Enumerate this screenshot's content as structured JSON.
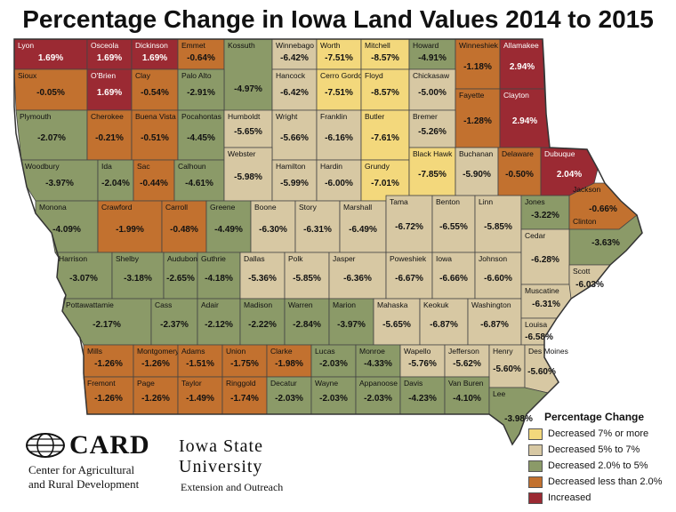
{
  "title": "Percentage Change in Iowa Land Values 2014 to 2015",
  "legend": {
    "title": "Percentage Change",
    "items": [
      {
        "key": "y",
        "label": "Decreased 7% or more",
        "color": "#f3d87c"
      },
      {
        "key": "t",
        "label": "Decreased 5% to 7%",
        "color": "#d7c8a3"
      },
      {
        "key": "g",
        "label": "Decreased 2.0% to 5%",
        "color": "#8b9a68"
      },
      {
        "key": "o",
        "label": "Decreased less than 2.0%",
        "color": "#c2712f"
      },
      {
        "key": "r",
        "label": "Increased",
        "color": "#9b2a33"
      }
    ]
  },
  "counties": [
    {
      "name": "Lyon",
      "value": "1.69%",
      "cat": "r"
    },
    {
      "name": "Osceola",
      "value": "1.69%",
      "cat": "r"
    },
    {
      "name": "Dickinson",
      "value": "1.69%",
      "cat": "r"
    },
    {
      "name": "Emmet",
      "value": "-0.64%",
      "cat": "o"
    },
    {
      "name": "Kossuth",
      "value": "-4.97%",
      "cat": "g"
    },
    {
      "name": "Winnebago",
      "value": "-6.42%",
      "cat": "t"
    },
    {
      "name": "Worth",
      "value": "-7.51%",
      "cat": "y"
    },
    {
      "name": "Mitchell",
      "value": "-8.57%",
      "cat": "y"
    },
    {
      "name": "Howard",
      "value": "-4.91%",
      "cat": "g"
    },
    {
      "name": "Winneshiek",
      "value": "-1.18%",
      "cat": "o"
    },
    {
      "name": "Allamakee",
      "value": "2.94%",
      "cat": "r"
    },
    {
      "name": "Sioux",
      "value": "-0.05%",
      "cat": "o"
    },
    {
      "name": "O'Brien",
      "value": "1.69%",
      "cat": "r"
    },
    {
      "name": "Clay",
      "value": "-0.54%",
      "cat": "o"
    },
    {
      "name": "Palo Alto",
      "value": "-2.91%",
      "cat": "g"
    },
    {
      "name": "Hancock",
      "value": "-6.42%",
      "cat": "t"
    },
    {
      "name": "Cerro Gordo",
      "value": "-7.51%",
      "cat": "y"
    },
    {
      "name": "Floyd",
      "value": "-8.57%",
      "cat": "y"
    },
    {
      "name": "Chickasaw",
      "value": "-5.00%",
      "cat": "t"
    },
    {
      "name": "Fayette",
      "value": "-1.28%",
      "cat": "o"
    },
    {
      "name": "Clayton",
      "value": "2.94%",
      "cat": "r"
    },
    {
      "name": "Plymouth",
      "value": "-2.07%",
      "cat": "g"
    },
    {
      "name": "Cherokee",
      "value": "-0.21%",
      "cat": "o"
    },
    {
      "name": "Buena Vista",
      "value": "-0.51%",
      "cat": "o"
    },
    {
      "name": "Pocahontas",
      "value": "-4.45%",
      "cat": "g"
    },
    {
      "name": "Humboldt",
      "value": "-5.65%",
      "cat": "t"
    },
    {
      "name": "Wright",
      "value": "-5.66%",
      "cat": "t"
    },
    {
      "name": "Franklin",
      "value": "-6.16%",
      "cat": "t"
    },
    {
      "name": "Butler",
      "value": "-7.61%",
      "cat": "y"
    },
    {
      "name": "Bremer",
      "value": "-5.26%",
      "cat": "t"
    },
    {
      "name": "Woodbury",
      "value": "-3.97%",
      "cat": "g"
    },
    {
      "name": "Ida",
      "value": "-2.04%",
      "cat": "g"
    },
    {
      "name": "Sac",
      "value": "-0.44%",
      "cat": "o"
    },
    {
      "name": "Calhoun",
      "value": "-4.61%",
      "cat": "g"
    },
    {
      "name": "Webster",
      "value": "-5.98%",
      "cat": "t"
    },
    {
      "name": "Hamilton",
      "value": "-5.99%",
      "cat": "t"
    },
    {
      "name": "Hardin",
      "value": "-6.00%",
      "cat": "t"
    },
    {
      "name": "Grundy",
      "value": "-7.01%",
      "cat": "y"
    },
    {
      "name": "Black Hawk",
      "value": "-7.85%",
      "cat": "y"
    },
    {
      "name": "Buchanan",
      "value": "-5.90%",
      "cat": "t"
    },
    {
      "name": "Delaware",
      "value": "-0.50%",
      "cat": "o"
    },
    {
      "name": "Dubuque",
      "value": "2.04%",
      "cat": "r"
    },
    {
      "name": "Monona",
      "value": "-4.09%",
      "cat": "g"
    },
    {
      "name": "Crawford",
      "value": "-1.99%",
      "cat": "o"
    },
    {
      "name": "Carroll",
      "value": "-0.48%",
      "cat": "o"
    },
    {
      "name": "Greene",
      "value": "-4.49%",
      "cat": "g"
    },
    {
      "name": "Boone",
      "value": "-6.30%",
      "cat": "t"
    },
    {
      "name": "Story",
      "value": "-6.31%",
      "cat": "t"
    },
    {
      "name": "Marshall",
      "value": "-6.49%",
      "cat": "t"
    },
    {
      "name": "Tama",
      "value": "-6.72%",
      "cat": "t"
    },
    {
      "name": "Benton",
      "value": "-6.55%",
      "cat": "t"
    },
    {
      "name": "Linn",
      "value": "-5.85%",
      "cat": "t"
    },
    {
      "name": "Jones",
      "value": "-3.22%",
      "cat": "g"
    },
    {
      "name": "Jackson",
      "value": "-0.66%",
      "cat": "o"
    },
    {
      "name": "Clinton",
      "value": "-3.63%",
      "cat": "g"
    },
    {
      "name": "Harrison",
      "value": "-3.07%",
      "cat": "g"
    },
    {
      "name": "Shelby",
      "value": "-3.18%",
      "cat": "g"
    },
    {
      "name": "Audubon",
      "value": "-2.65%",
      "cat": "g"
    },
    {
      "name": "Guthrie",
      "value": "-4.18%",
      "cat": "g"
    },
    {
      "name": "Dallas",
      "value": "-5.36%",
      "cat": "t"
    },
    {
      "name": "Polk",
      "value": "-5.85%",
      "cat": "t"
    },
    {
      "name": "Jasper",
      "value": "-6.36%",
      "cat": "t"
    },
    {
      "name": "Poweshiek",
      "value": "-6.67%",
      "cat": "t"
    },
    {
      "name": "Iowa",
      "value": "-6.66%",
      "cat": "t"
    },
    {
      "name": "Johnson",
      "value": "-6.60%",
      "cat": "t"
    },
    {
      "name": "Cedar",
      "value": "-6.28%",
      "cat": "t"
    },
    {
      "name": "Scott",
      "value": "-6.03%",
      "cat": "t"
    },
    {
      "name": "Pottawattamie",
      "value": "-2.17%",
      "cat": "g"
    },
    {
      "name": "Cass",
      "value": "-2.37%",
      "cat": "g"
    },
    {
      "name": "Adair",
      "value": "-2.12%",
      "cat": "g"
    },
    {
      "name": "Madison",
      "value": "-2.22%",
      "cat": "g"
    },
    {
      "name": "Warren",
      "value": "-2.84%",
      "cat": "g"
    },
    {
      "name": "Marion",
      "value": "-3.97%",
      "cat": "g"
    },
    {
      "name": "Mahaska",
      "value": "-5.65%",
      "cat": "t"
    },
    {
      "name": "Keokuk",
      "value": "-6.87%",
      "cat": "t"
    },
    {
      "name": "Washington",
      "value": "-6.87%",
      "cat": "t"
    },
    {
      "name": "Muscatine",
      "value": "-6.31%",
      "cat": "t"
    },
    {
      "name": "Louisa",
      "value": "-6.58%",
      "cat": "t"
    },
    {
      "name": "Mills",
      "value": "-1.26%",
      "cat": "o"
    },
    {
      "name": "Montgomery",
      "value": "-1.26%",
      "cat": "o"
    },
    {
      "name": "Adams",
      "value": "-1.51%",
      "cat": "o"
    },
    {
      "name": "Union",
      "value": "-1.75%",
      "cat": "o"
    },
    {
      "name": "Clarke",
      "value": "-1.98%",
      "cat": "o"
    },
    {
      "name": "Lucas",
      "value": "-2.03%",
      "cat": "g"
    },
    {
      "name": "Monroe",
      "value": "-4.33%",
      "cat": "g"
    },
    {
      "name": "Wapello",
      "value": "-5.76%",
      "cat": "t"
    },
    {
      "name": "Jefferson",
      "value": "-5.62%",
      "cat": "t"
    },
    {
      "name": "Henry",
      "value": "-5.60%",
      "cat": "t"
    },
    {
      "name": "Des Moines",
      "value": "-5.60%",
      "cat": "t"
    },
    {
      "name": "Fremont",
      "value": "-1.26%",
      "cat": "o"
    },
    {
      "name": "Page",
      "value": "-1.26%",
      "cat": "o"
    },
    {
      "name": "Taylor",
      "value": "-1.49%",
      "cat": "o"
    },
    {
      "name": "Ringgold",
      "value": "-1.74%",
      "cat": "o"
    },
    {
      "name": "Decatur",
      "value": "-2.03%",
      "cat": "g"
    },
    {
      "name": "Wayne",
      "value": "-2.03%",
      "cat": "g"
    },
    {
      "name": "Appanoose",
      "value": "-2.03%",
      "cat": "g"
    },
    {
      "name": "Davis",
      "value": "-4.23%",
      "cat": "g"
    },
    {
      "name": "Van Buren",
      "value": "-4.10%",
      "cat": "g"
    },
    {
      "name": "Lee",
      "value": "-3.98%",
      "cat": "g"
    }
  ],
  "logos": {
    "card_word": "CARD",
    "card_line1": "Center for Agricultural",
    "card_line2": "and Rural Development",
    "isu_line1": "Iowa State",
    "isu_line2": "University",
    "isu_line3": "Extension and Outreach"
  }
}
